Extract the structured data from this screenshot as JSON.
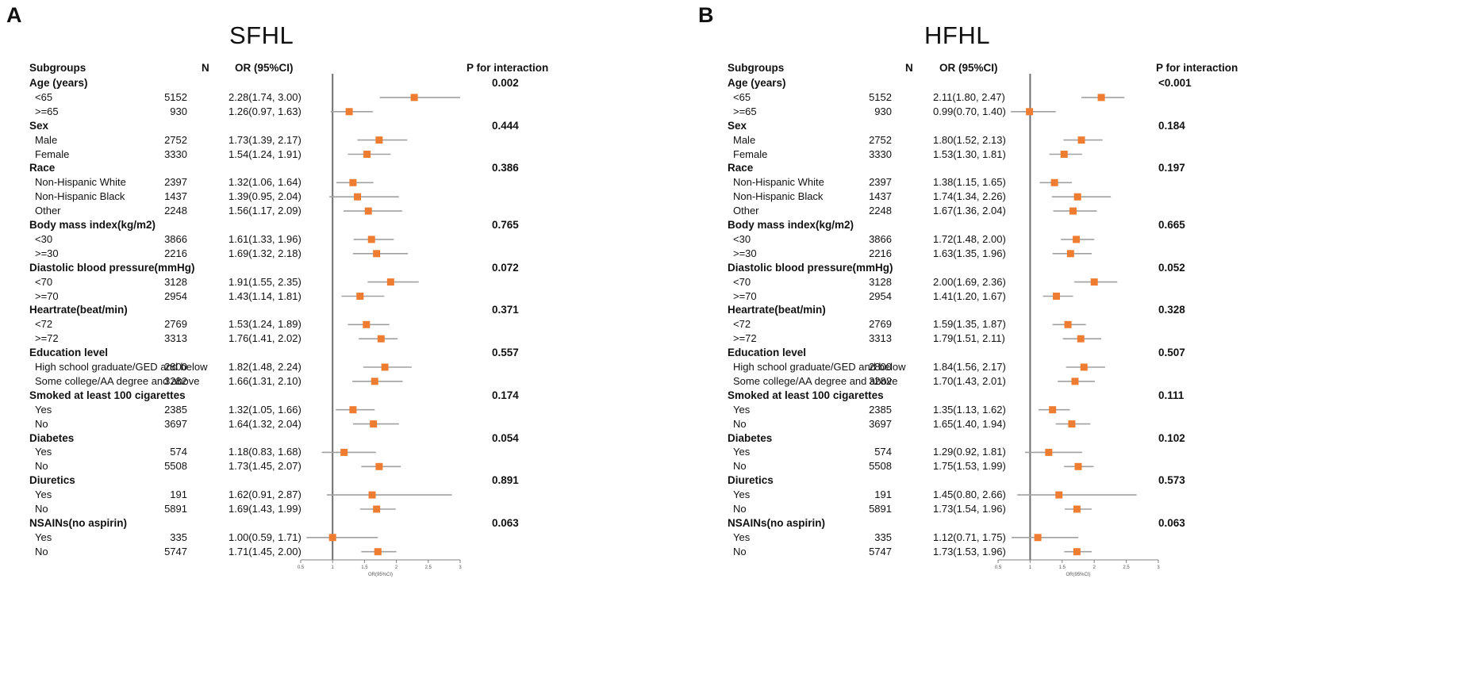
{
  "colors": {
    "marker": "#ee7d31",
    "ci_line": "#a0a0a0",
    "ref_line": "#6e6e6e",
    "axis": "#808080"
  },
  "chart_data": [
    {
      "type": "forest",
      "panel": "A",
      "title": "SFHL",
      "headers": {
        "subgroups": "Subgroups",
        "n": "N",
        "or": "OR (95%CI)",
        "p": "P for interaction"
      },
      "xlabel": "OR(95%CI)",
      "xlim": [
        0.5,
        3
      ],
      "xticks": [
        "0.5",
        "1",
        "1.5",
        "2",
        "2.5",
        "3"
      ],
      "reference": 1,
      "rows": [
        {
          "label": "Age (years)",
          "group": true,
          "p": "0.002"
        },
        {
          "label": "<65",
          "n": "5152",
          "or_text": "2.28(1.74, 3.00)",
          "or": 2.28,
          "lo": 1.74,
          "hi": 3.0
        },
        {
          "label": ">=65",
          "n": "930",
          "or_text": "1.26(0.97, 1.63)",
          "or": 1.26,
          "lo": 0.97,
          "hi": 1.63
        },
        {
          "label": "Sex",
          "group": true,
          "p": "0.444"
        },
        {
          "label": "Male",
          "n": "2752",
          "or_text": "1.73(1.39, 2.17)",
          "or": 1.73,
          "lo": 1.39,
          "hi": 2.17
        },
        {
          "label": "Female",
          "n": "3330",
          "or_text": "1.54(1.24, 1.91)",
          "or": 1.54,
          "lo": 1.24,
          "hi": 1.91
        },
        {
          "label": "Race",
          "group": true,
          "p": "0.386"
        },
        {
          "label": "Non-Hispanic White",
          "n": "2397",
          "or_text": "1.32(1.06, 1.64)",
          "or": 1.32,
          "lo": 1.06,
          "hi": 1.64
        },
        {
          "label": "Non-Hispanic Black",
          "n": "1437",
          "or_text": "1.39(0.95, 2.04)",
          "or": 1.39,
          "lo": 0.95,
          "hi": 2.04
        },
        {
          "label": "Other",
          "n": "2248",
          "or_text": "1.56(1.17, 2.09)",
          "or": 1.56,
          "lo": 1.17,
          "hi": 2.09
        },
        {
          "label": "Body mass index(kg/m2)",
          "group": true,
          "p": "0.765"
        },
        {
          "label": "<30",
          "n": "3866",
          "or_text": "1.61(1.33, 1.96)",
          "or": 1.61,
          "lo": 1.33,
          "hi": 1.96
        },
        {
          "label": ">=30",
          "n": "2216",
          "or_text": "1.69(1.32, 2.18)",
          "or": 1.69,
          "lo": 1.32,
          "hi": 2.18
        },
        {
          "label": "Diastolic blood pressure(mmHg)",
          "group": true,
          "p": "0.072"
        },
        {
          "label": "<70",
          "n": "3128",
          "or_text": "1.91(1.55, 2.35)",
          "or": 1.91,
          "lo": 1.55,
          "hi": 2.35
        },
        {
          "label": ">=70",
          "n": "2954",
          "or_text": "1.43(1.14, 1.81)",
          "or": 1.43,
          "lo": 1.14,
          "hi": 1.81
        },
        {
          "label": "Heartrate(beat/min)",
          "group": true,
          "p": "0.371"
        },
        {
          "label": "<72",
          "n": "2769",
          "or_text": "1.53(1.24, 1.89)",
          "or": 1.53,
          "lo": 1.24,
          "hi": 1.89
        },
        {
          "label": ">=72",
          "n": "3313",
          "or_text": "1.76(1.41, 2.02)",
          "or": 1.76,
          "lo": 1.41,
          "hi": 2.02
        },
        {
          "label": "Education level",
          "group": true,
          "p": "0.557"
        },
        {
          "label": "High school graduate/GED and below",
          "n": "2800",
          "or_text": "1.82(1.48, 2.24)",
          "or": 1.82,
          "lo": 1.48,
          "hi": 2.24
        },
        {
          "label": "Some college/AA degree and above",
          "n": "3282",
          "or_text": "1.66(1.31, 2.10)",
          "or": 1.66,
          "lo": 1.31,
          "hi": 2.1
        },
        {
          "label": "Smoked at least 100 cigarettes",
          "group": true,
          "p": "0.174"
        },
        {
          "label": "Yes",
          "n": "2385",
          "or_text": "1.32(1.05, 1.66)",
          "or": 1.32,
          "lo": 1.05,
          "hi": 1.66
        },
        {
          "label": "No",
          "n": "3697",
          "or_text": "1.64(1.32, 2.04)",
          "or": 1.64,
          "lo": 1.32,
          "hi": 2.04
        },
        {
          "label": "Diabetes",
          "group": true,
          "p": "0.054"
        },
        {
          "label": "Yes",
          "n": "574",
          "or_text": "1.18(0.83, 1.68)",
          "or": 1.18,
          "lo": 0.83,
          "hi": 1.68
        },
        {
          "label": "No",
          "n": "5508",
          "or_text": "1.73(1.45, 2.07)",
          "or": 1.73,
          "lo": 1.45,
          "hi": 2.07
        },
        {
          "label": "Diuretics",
          "group": true,
          "p": "0.891"
        },
        {
          "label": "Yes",
          "n": "191",
          "or_text": "1.62(0.91, 2.87)",
          "or": 1.62,
          "lo": 0.91,
          "hi": 2.87
        },
        {
          "label": "No",
          "n": "5891",
          "or_text": "1.69(1.43, 1.99)",
          "or": 1.69,
          "lo": 1.43,
          "hi": 1.99
        },
        {
          "label": "NSAINs(no aspirin)",
          "group": true,
          "p": "0.063"
        },
        {
          "label": "Yes",
          "n": "335",
          "or_text": "1.00(0.59, 1.71)",
          "or": 1.0,
          "lo": 0.59,
          "hi": 1.71
        },
        {
          "label": "No",
          "n": "5747",
          "or_text": "1.71(1.45, 2.00)",
          "or": 1.71,
          "lo": 1.45,
          "hi": 2.0
        }
      ]
    },
    {
      "type": "forest",
      "panel": "B",
      "title": "HFHL",
      "headers": {
        "subgroups": "Subgroups",
        "n": "N",
        "or": "OR (95%CI)",
        "p": "P for interaction"
      },
      "xlabel": "OR(95%CI)",
      "xlim": [
        0.5,
        3
      ],
      "xticks": [
        "0.5",
        "1",
        "1.5",
        "2",
        "2.5",
        "3"
      ],
      "reference": 1,
      "rows": [
        {
          "label": "Age (years)",
          "group": true,
          "p": "<0.001"
        },
        {
          "label": "<65",
          "n": "5152",
          "or_text": "2.11(1.80, 2.47)",
          "or": 2.11,
          "lo": 1.8,
          "hi": 2.47
        },
        {
          "label": ">=65",
          "n": "930",
          "or_text": "0.99(0.70, 1.40)",
          "or": 0.99,
          "lo": 0.7,
          "hi": 1.4
        },
        {
          "label": "Sex",
          "group": true,
          "p": "0.184"
        },
        {
          "label": "Male",
          "n": "2752",
          "or_text": "1.80(1.52, 2.13)",
          "or": 1.8,
          "lo": 1.52,
          "hi": 2.13
        },
        {
          "label": "Female",
          "n": "3330",
          "or_text": "1.53(1.30, 1.81)",
          "or": 1.53,
          "lo": 1.3,
          "hi": 1.81
        },
        {
          "label": "Race",
          "group": true,
          "p": "0.197"
        },
        {
          "label": "Non-Hispanic White",
          "n": "2397",
          "or_text": "1.38(1.15, 1.65)",
          "or": 1.38,
          "lo": 1.15,
          "hi": 1.65
        },
        {
          "label": "Non-Hispanic Black",
          "n": "1437",
          "or_text": "1.74(1.34, 2.26)",
          "or": 1.74,
          "lo": 1.34,
          "hi": 2.26
        },
        {
          "label": "Other",
          "n": "2248",
          "or_text": "1.67(1.36, 2.04)",
          "or": 1.67,
          "lo": 1.36,
          "hi": 2.04
        },
        {
          "label": "Body mass index(kg/m2)",
          "group": true,
          "p": "0.665"
        },
        {
          "label": "<30",
          "n": "3866",
          "or_text": "1.72(1.48, 2.00)",
          "or": 1.72,
          "lo": 1.48,
          "hi": 2.0
        },
        {
          "label": ">=30",
          "n": "2216",
          "or_text": "1.63(1.35, 1.96)",
          "or": 1.63,
          "lo": 1.35,
          "hi": 1.96
        },
        {
          "label": "Diastolic blood pressure(mmHg)",
          "group": true,
          "p": "0.052"
        },
        {
          "label": "<70",
          "n": "3128",
          "or_text": "2.00(1.69, 2.36)",
          "or": 2.0,
          "lo": 1.69,
          "hi": 2.36
        },
        {
          "label": ">=70",
          "n": "2954",
          "or_text": "1.41(1.20, 1.67)",
          "or": 1.41,
          "lo": 1.2,
          "hi": 1.67
        },
        {
          "label": "Heartrate(beat/min)",
          "group": true,
          "p": "0.328"
        },
        {
          "label": "<72",
          "n": "2769",
          "or_text": "1.59(1.35, 1.87)",
          "or": 1.59,
          "lo": 1.35,
          "hi": 1.87
        },
        {
          "label": ">=72",
          "n": "3313",
          "or_text": "1.79(1.51, 2.11)",
          "or": 1.79,
          "lo": 1.51,
          "hi": 2.11
        },
        {
          "label": "Education level",
          "group": true,
          "p": "0.507"
        },
        {
          "label": "High school graduate/GED and below",
          "n": "2800",
          "or_text": "1.84(1.56, 2.17)",
          "or": 1.84,
          "lo": 1.56,
          "hi": 2.17
        },
        {
          "label": "Some college/AA degree and above",
          "n": "3282",
          "or_text": "1.70(1.43, 2.01)",
          "or": 1.7,
          "lo": 1.43,
          "hi": 2.01
        },
        {
          "label": "Smoked at least 100 cigarettes",
          "group": true,
          "p": "0.111"
        },
        {
          "label": "Yes",
          "n": "2385",
          "or_text": "1.35(1.13, 1.62)",
          "or": 1.35,
          "lo": 1.13,
          "hi": 1.62
        },
        {
          "label": "No",
          "n": "3697",
          "or_text": "1.65(1.40, 1.94)",
          "or": 1.65,
          "lo": 1.4,
          "hi": 1.94
        },
        {
          "label": "Diabetes",
          "group": true,
          "p": "0.102"
        },
        {
          "label": "Yes",
          "n": "574",
          "or_text": "1.29(0.92, 1.81)",
          "or": 1.29,
          "lo": 0.92,
          "hi": 1.81
        },
        {
          "label": "No",
          "n": "5508",
          "or_text": "1.75(1.53, 1.99)",
          "or": 1.75,
          "lo": 1.53,
          "hi": 1.99
        },
        {
          "label": "Diuretics",
          "group": true,
          "p": "0.573"
        },
        {
          "label": "Yes",
          "n": "191",
          "or_text": "1.45(0.80, 2.66)",
          "or": 1.45,
          "lo": 0.8,
          "hi": 2.66
        },
        {
          "label": "No",
          "n": "5891",
          "or_text": "1.73(1.54, 1.96)",
          "or": 1.73,
          "lo": 1.54,
          "hi": 1.96
        },
        {
          "label": "NSAINs(no aspirin)",
          "group": true,
          "p": "0.063"
        },
        {
          "label": "Yes",
          "n": "335",
          "or_text": "1.12(0.71, 1.75)",
          "or": 1.12,
          "lo": 0.71,
          "hi": 1.75
        },
        {
          "label": "No",
          "n": "5747",
          "or_text": "1.73(1.53, 1.96)",
          "or": 1.73,
          "lo": 1.53,
          "hi": 1.96
        }
      ]
    }
  ]
}
